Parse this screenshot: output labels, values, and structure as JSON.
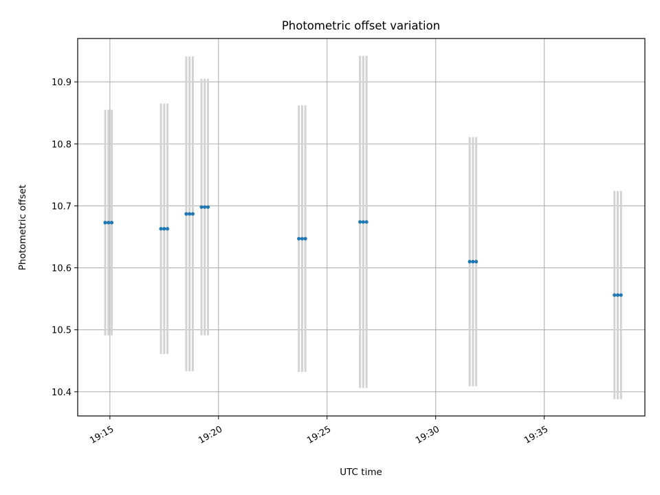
{
  "chart_data": {
    "type": "scatter",
    "title": "Photometric offset variation",
    "xlabel": "UTC time",
    "ylabel": "Photometric offset",
    "x_ticks": [
      "19:15",
      "19:20",
      "19:25",
      "19:30",
      "19:35"
    ],
    "y_ticks": [
      "10.4",
      "10.5",
      "10.6",
      "10.7",
      "10.8",
      "10.9"
    ],
    "xlim": [
      "19:13:31",
      "19:39:38"
    ],
    "ylim": [
      10.361,
      10.97
    ],
    "grid": true,
    "colors": {
      "points": "#1f77b4",
      "error_bars": "#d3d3d3",
      "grid": "#b0b0b0"
    },
    "groups": [
      {
        "times": [
          "19:14:47",
          "19:14:56",
          "19:15:05"
        ],
        "value": 10.673,
        "error": 0.182
      },
      {
        "times": [
          "19:17:21",
          "19:17:30",
          "19:17:39"
        ],
        "value": 10.663,
        "error": 0.202
      },
      {
        "times": [
          "19:18:31",
          "19:18:40",
          "19:18:49"
        ],
        "value": 10.687,
        "error": 0.254
      },
      {
        "times": [
          "19:19:13",
          "19:19:22",
          "19:19:31"
        ],
        "value": 10.698,
        "error": 0.207
      },
      {
        "times": [
          "19:23:42",
          "19:23:51",
          "19:24:00"
        ],
        "value": 10.647,
        "error": 0.215
      },
      {
        "times": [
          "19:26:31",
          "19:26:40",
          "19:26:49"
        ],
        "value": 10.674,
        "error": 0.268
      },
      {
        "times": [
          "19:31:34",
          "19:31:43",
          "19:31:52"
        ],
        "value": 10.61,
        "error": 0.201
      },
      {
        "times": [
          "19:38:14",
          "19:38:23",
          "19:38:32"
        ],
        "value": 10.556,
        "error": 0.168
      }
    ]
  }
}
